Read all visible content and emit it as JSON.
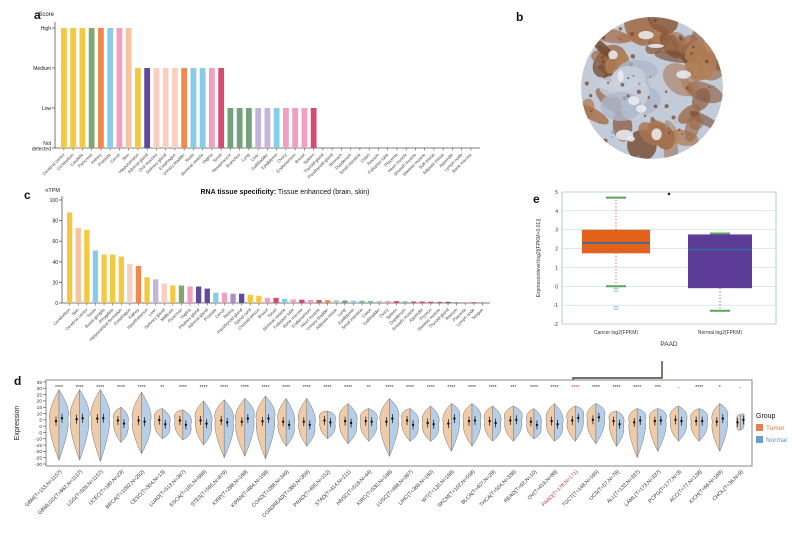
{
  "figure": {
    "panel_letters": {
      "a": "a",
      "b": "b",
      "c": "c",
      "d": "d",
      "e": "e"
    },
    "ihc_image": {
      "alt": "immunohistochemistry stained circular tissue core, brown DAB staining on blue-gray counterstain"
    }
  },
  "chart_data": [
    {
      "id": "protein_score",
      "panel": "a",
      "type": "bar",
      "ylabel": "Score",
      "yticks": [
        "High",
        "Medium",
        "Low",
        "Not detected"
      ],
      "bars": [
        {
          "tissue": "Cerebral cortex",
          "score": 3,
          "color": "#F5C842"
        },
        {
          "tissue": "Cerebellum",
          "score": 3,
          "color": "#F5C842"
        },
        {
          "tissue": "Caudate",
          "score": 3,
          "color": "#F5C842"
        },
        {
          "tissue": "Pancreas",
          "score": 3,
          "color": "#83A672"
        },
        {
          "tissue": "Kidney",
          "score": 3,
          "color": "#EF8A4C"
        },
        {
          "tissue": "Prostate",
          "score": 3,
          "color": "#89CBEA"
        },
        {
          "tissue": "Cervix",
          "score": 3,
          "color": "#F2A0C0"
        },
        {
          "tissue": "Skin",
          "score": 3,
          "color": "#F6C49E"
        },
        {
          "tissue": "Hippocampus",
          "score": 2,
          "color": "#F5C842"
        },
        {
          "tissue": "Adrenal gland",
          "score": 2,
          "color": "#5F4B9E"
        },
        {
          "tissue": "Oral mucosa",
          "score": 2,
          "color": "#F8CFC0"
        },
        {
          "tissue": "Salivary gland",
          "score": 2,
          "color": "#F8CFC0"
        },
        {
          "tissue": "Esophagus",
          "score": 2,
          "color": "#F8CFC0"
        },
        {
          "tissue": "Urinary bladder",
          "score": 2,
          "color": "#EF8A4C"
        },
        {
          "tissue": "Testis",
          "score": 2,
          "color": "#89CBEA"
        },
        {
          "tissue": "Seminal vesicle",
          "score": 2,
          "color": "#89CBEA"
        },
        {
          "tissue": "Vagina",
          "score": 2,
          "color": "#F2A0C0"
        },
        {
          "tissue": "Tonsil",
          "score": 2,
          "color": "#D64B6E"
        },
        {
          "tissue": "Nasopharynx",
          "score": 1,
          "color": "#74A27A"
        },
        {
          "tissue": "Bronchus",
          "score": 1,
          "color": "#74A27A"
        },
        {
          "tissue": "Lung",
          "score": 1,
          "color": "#74A27A"
        },
        {
          "tissue": "Liver",
          "score": 1,
          "color": "#C5B5DB"
        },
        {
          "tissue": "Gallbladder",
          "score": 1,
          "color": "#C5B5DB"
        },
        {
          "tissue": "Epididymis",
          "score": 1,
          "color": "#89CBEA"
        },
        {
          "tissue": "Ovary",
          "score": 1,
          "color": "#F2A0C0"
        },
        {
          "tissue": "Endometrium",
          "score": 1,
          "color": "#F2A0C0"
        },
        {
          "tissue": "Breast",
          "score": 1,
          "color": "#F2A0C0"
        },
        {
          "tissue": "Spleen",
          "score": 1,
          "color": "#D64B6E"
        },
        {
          "tissue": "Thyroid gland",
          "score": 0,
          "color": "#999999"
        },
        {
          "tissue": "Parathyroid gland",
          "score": 0,
          "color": "#999999"
        },
        {
          "tissue": "Stomach",
          "score": 0,
          "color": "#999999"
        },
        {
          "tissue": "Duodenum",
          "score": 0,
          "color": "#999999"
        },
        {
          "tissue": "Small intestine",
          "score": 0,
          "color": "#999999"
        },
        {
          "tissue": "Colon",
          "score": 0,
          "color": "#999999"
        },
        {
          "tissue": "Rectum",
          "score": 0,
          "color": "#999999"
        },
        {
          "tissue": "Fallopian tube",
          "score": 0,
          "color": "#999999"
        },
        {
          "tissue": "Placenta",
          "score": 0,
          "color": "#999999"
        },
        {
          "tissue": "Heart muscle",
          "score": 0,
          "color": "#999999"
        },
        {
          "tissue": "Smooth muscle",
          "score": 0,
          "color": "#999999"
        },
        {
          "tissue": "Skeletal muscle",
          "score": 0,
          "color": "#999999"
        },
        {
          "tissue": "Soft tissue",
          "score": 0,
          "color": "#999999"
        },
        {
          "tissue": "Adipose tissue",
          "score": 0,
          "color": "#999999"
        },
        {
          "tissue": "Appendix",
          "score": 0,
          "color": "#999999"
        },
        {
          "tissue": "Lymph node",
          "score": 0,
          "color": "#999999"
        },
        {
          "tissue": "Bone marrow",
          "score": 0,
          "color": "#999999"
        }
      ]
    },
    {
      "id": "rna_specificity",
      "panel": "c",
      "type": "bar",
      "title_bold": "RNA tissue specificity:",
      "title_rest": " Tissue enhanced (brain, skin)",
      "ylabel": "nTPM",
      "ylim": [
        0,
        100
      ],
      "yticks": [
        0,
        20,
        40,
        60,
        80,
        100
      ],
      "bars": [
        {
          "tissue": "Cerebellum",
          "value": 88,
          "color": "#F5C842"
        },
        {
          "tissue": "Skin",
          "value": 73,
          "color": "#F6C49E"
        },
        {
          "tissue": "Cerebral cortex",
          "value": 71,
          "color": "#F5C842"
        },
        {
          "tissue": "Testis",
          "value": 51,
          "color": "#89CBEA"
        },
        {
          "tissue": "Basal ganglia",
          "value": 47,
          "color": "#F5C842"
        },
        {
          "tissue": "Amygdala",
          "value": 47,
          "color": "#F5C842"
        },
        {
          "tissue": "Hippocampal formation",
          "value": 45,
          "color": "#F5C842"
        },
        {
          "tissue": "Esophagus",
          "value": 38,
          "color": "#F8CFC0"
        },
        {
          "tissue": "Kidney",
          "value": 36,
          "color": "#EF8A4C"
        },
        {
          "tissue": "Hypothalamus",
          "value": 25,
          "color": "#F5C842"
        },
        {
          "tissue": "Liver",
          "value": 23,
          "color": "#C5B5DB"
        },
        {
          "tissue": "Salivary gland",
          "value": 19,
          "color": "#F8CFC0"
        },
        {
          "tissue": "Midbrain",
          "value": 17,
          "color": "#F5C842"
        },
        {
          "tissue": "Pancreas",
          "value": 17,
          "color": "#83A672"
        },
        {
          "tissue": "Vagina",
          "value": 16,
          "color": "#F2A0C0"
        },
        {
          "tissue": "Pituitary gland",
          "value": 16,
          "color": "#5F4B9E"
        },
        {
          "tissue": "Adrenal gland",
          "value": 14,
          "color": "#5F4B9E"
        },
        {
          "tissue": "Prostate",
          "value": 10,
          "color": "#89CBEA"
        },
        {
          "tissue": "Cervix",
          "value": 10,
          "color": "#F2A0C0"
        },
        {
          "tissue": "Retina",
          "value": 9,
          "color": "#A98FC5"
        },
        {
          "tissue": "Parathyroid gland",
          "value": 9,
          "color": "#5F4B9E"
        },
        {
          "tissue": "Spinal cord",
          "value": 8,
          "color": "#F5C842"
        },
        {
          "tissue": "Choroid plexus",
          "value": 7,
          "color": "#F5C842"
        },
        {
          "tissue": "Breast",
          "value": 5,
          "color": "#F2A0C0"
        },
        {
          "tissue": "Tonsil",
          "value": 5,
          "color": "#D64B6E"
        },
        {
          "tissue": "Seminal vesicle",
          "value": 4,
          "color": "#89CBEA"
        },
        {
          "tissue": "Fallopian tube",
          "value": 3.5,
          "color": "#F2A0C0"
        },
        {
          "tissue": "Bone marrow",
          "value": 3.2,
          "color": "#D64B6E"
        },
        {
          "tissue": "Endometrium",
          "value": 3,
          "color": "#F2A0C0"
        },
        {
          "tissue": "Heart muscle",
          "value": 3,
          "color": "#C06A5E"
        },
        {
          "tissue": "Urinary bladder",
          "value": 2.8,
          "color": "#EF8A4C"
        },
        {
          "tissue": "Adipose tissue",
          "value": 2.6,
          "color": "#BFBFBF"
        },
        {
          "tissue": "Lung",
          "value": 2.4,
          "color": "#74A27A"
        },
        {
          "tissue": "Epididymis",
          "value": 2.3,
          "color": "#89CBEA"
        },
        {
          "tissue": "Small intestine",
          "value": 2.2,
          "color": "#86B8A2"
        },
        {
          "tissue": "Colon",
          "value": 2.1,
          "color": "#86B8A2"
        },
        {
          "tissue": "Gallbladder",
          "value": 2,
          "color": "#C5B5DB"
        },
        {
          "tissue": "Ovary",
          "value": 1.9,
          "color": "#F2A0C0"
        },
        {
          "tissue": "Spleen",
          "value": 1.8,
          "color": "#D64B6E"
        },
        {
          "tissue": "Duodenum",
          "value": 1.6,
          "color": "#86B8A2"
        },
        {
          "tissue": "Smooth muscle",
          "value": 1.5,
          "color": "#C06A5E"
        },
        {
          "tissue": "Appendix",
          "value": 1.4,
          "color": "#D64B6E"
        },
        {
          "tissue": "Thymus",
          "value": 1.3,
          "color": "#D64B6E"
        },
        {
          "tissue": "Skeletal muscle",
          "value": 1.2,
          "color": "#C06A5E"
        },
        {
          "tissue": "Thyroid gland",
          "value": 1.1,
          "color": "#5F4B9E"
        },
        {
          "tissue": "Rectum",
          "value": 1,
          "color": "#86B8A2"
        },
        {
          "tissue": "Placenta",
          "value": 0.9,
          "color": "#F2A0C0"
        },
        {
          "tissue": "Lymph node",
          "value": 0.8,
          "color": "#D64B6E"
        },
        {
          "tissue": "Tongue",
          "value": 0.6,
          "color": "#C06A5E"
        }
      ]
    },
    {
      "id": "paad_boxplot",
      "panel": "e",
      "type": "box",
      "ylabel": "Expressionlevel:log2[(FPKM+0.01)]",
      "xlabel": "PAAD",
      "ylim": [
        -2,
        5
      ],
      "yticks": [
        5,
        4,
        3,
        2,
        1,
        0,
        -1,
        -2
      ],
      "stray_point": 4.9,
      "colors": {
        "median_line": "#2E6DA4",
        "whisker_dots": "#CC3333",
        "caps": "#58A55C",
        "outlier": "#8BBBD9",
        "grid": "#CCD6EE",
        "frame": "#AAB8D8"
      },
      "groups": [
        {
          "label": "Cancer log2(FPKM)",
          "box_color": "#E2621B",
          "q1": 1.75,
          "median": 2.3,
          "q3": 3.0,
          "whisker_low": 0.0,
          "whisker_high": 4.7,
          "outliers": [
            -0.2,
            -1.15
          ]
        },
        {
          "label": "Normal log2(FPKM)",
          "box_color": "#5C3C97",
          "q1": -0.1,
          "median": 1.95,
          "q3": 2.75,
          "whisker_low": -1.3,
          "whisker_high": 2.8,
          "outliers": []
        }
      ]
    },
    {
      "id": "pancancer_violin",
      "panel": "d",
      "type": "violin",
      "ylabel": "Expression",
      "yticks": [
        35,
        30,
        25,
        20,
        15,
        10,
        5,
        0,
        -5,
        -10,
        -15,
        -20,
        -25,
        -30
      ],
      "highlight_color": "#C0392B",
      "legend": {
        "title": "Group",
        "items": [
          {
            "label": "Tumor",
            "color": "#DD8452",
            "text_color": "#C77B43"
          },
          {
            "label": "Normal",
            "color": "#6D9ED0",
            "text_color": "#5B8FC9"
          }
        ]
      },
      "violin_fill": {
        "tumor": "#EFCBA8",
        "normal": "#B7CEE8"
      },
      "groups": [
        {
          "label": "GBM(T=153,N=1157)",
          "sig": "****",
          "t": 4.0,
          "n": 6.3,
          "hi": 29,
          "lo": -27,
          "w": 1
        },
        {
          "label": "GBMLGG(T=662,N=1157)",
          "sig": "****",
          "t": 5.5,
          "n": 6.3,
          "hi": 29,
          "lo": -27,
          "w": 1
        },
        {
          "label": "LGG(T=509,N=1157)",
          "sig": "****",
          "t": 6.0,
          "n": 6.3,
          "hi": 29,
          "lo": -28,
          "w": 1
        },
        {
          "label": "UCEC(T=180,N=23)",
          "sig": "****",
          "t": 4.5,
          "n": 2.0,
          "hi": 15,
          "lo": -13,
          "w": 0.8
        },
        {
          "label": "BRCA(T=1092,N=292)",
          "sig": "****",
          "t": 4.5,
          "n": 3.5,
          "hi": 27,
          "lo": -22,
          "w": 1
        },
        {
          "label": "CESC(T=304,N=13)",
          "sig": "**",
          "t": 4.8,
          "n": 1.5,
          "hi": 14,
          "lo": -10,
          "w": 0.85
        },
        {
          "label": "LUAD(T=513,N=397)",
          "sig": "****",
          "t": 4.5,
          "n": 1.0,
          "hi": 13,
          "lo": -11,
          "w": 0.9
        },
        {
          "label": "ESCA(T=181,N=668)",
          "sig": "****",
          "t": 4.5,
          "n": 2.0,
          "hi": 20,
          "lo": -15,
          "w": 0.9
        },
        {
          "label": "STES(T=595,N=879)",
          "sig": "****",
          "t": 4.5,
          "n": 3.0,
          "hi": 21,
          "lo": -25,
          "w": 1
        },
        {
          "label": "KIRP(T=288,N=168)",
          "sig": "****",
          "t": 3.5,
          "n": 6.0,
          "hi": 22,
          "lo": -24,
          "w": 1
        },
        {
          "label": "KIPAN(T=884,N=168)",
          "sig": "****",
          "t": 3.8,
          "n": 6.0,
          "hi": 24,
          "lo": -26,
          "w": 1
        },
        {
          "label": "COAD(T=288,N=349)",
          "sig": "****",
          "t": 3.5,
          "n": 1.0,
          "hi": 22,
          "lo": -16,
          "w": 0.9
        },
        {
          "label": "COADREAD(T=380,N=359)",
          "sig": "****",
          "t": 3.5,
          "n": 1.0,
          "hi": 22,
          "lo": -16,
          "w": 0.9
        },
        {
          "label": "PRAD(T=495,N=152)",
          "sig": "****",
          "t": 4.5,
          "n": 3.0,
          "hi": 12,
          "lo": -10,
          "w": 0.85
        },
        {
          "label": "STAD(T=414,N=211)",
          "sig": "****",
          "t": 4.0,
          "n": 2.5,
          "hi": 18,
          "lo": -14,
          "w": 0.95
        },
        {
          "label": "HNSC(T=518,N=44)",
          "sig": "**",
          "t": 4.0,
          "n": 3.5,
          "hi": 14,
          "lo": -12,
          "w": 0.9
        },
        {
          "label": "KIRC(T=530,N=168)",
          "sig": "****",
          "t": 3.5,
          "n": 6.0,
          "hi": 22,
          "lo": -24,
          "w": 1
        },
        {
          "label": "LUSC(T=498,N=397)",
          "sig": "****",
          "t": 4.5,
          "n": 1.0,
          "hi": 14,
          "lo": -12,
          "w": 0.9
        },
        {
          "label": "LIHC(T=369,N=160)",
          "sig": "****",
          "t": 2.5,
          "n": 1.5,
          "hi": 16,
          "lo": -12,
          "w": 0.9
        },
        {
          "label": "WT(T=120,N=168)",
          "sig": "****",
          "t": 2.0,
          "n": 6.0,
          "hi": 18,
          "lo": -20,
          "w": 0.9
        },
        {
          "label": "SKCM(T=102,N=558)",
          "sig": "****",
          "t": 4.0,
          "n": 4.5,
          "hi": 18,
          "lo": -16,
          "w": 0.95
        },
        {
          "label": "BLCA(T=407,N=28)",
          "sig": "****",
          "t": 4.0,
          "n": 2.5,
          "hi": 16,
          "lo": -12,
          "w": 0.9
        },
        {
          "label": "THCA(T=504,N=338)",
          "sig": "***",
          "t": 4.5,
          "n": 5.0,
          "hi": 16,
          "lo": -12,
          "w": 0.95
        },
        {
          "label": "READ(T=92,N=10)",
          "sig": "****",
          "t": 3.5,
          "n": 1.0,
          "hi": 14,
          "lo": -10,
          "w": 0.8
        },
        {
          "label": "OV(T=419,N=88)",
          "sig": "****",
          "t": 4.0,
          "n": 1.5,
          "hi": 18,
          "lo": -12,
          "w": 0.9
        },
        {
          "label": "PAAD(T=178,N=171)",
          "sig": "****",
          "t": 4.5,
          "n": 6.5,
          "hi": 16,
          "lo": -12,
          "w": 0.9,
          "highlight": true
        },
        {
          "label": "TGCT(T=148,N=165)",
          "sig": "****",
          "t": 5.0,
          "n": 7.0,
          "hi": 18,
          "lo": -14,
          "w": 0.95
        },
        {
          "label": "UCS(T=57,N=78)",
          "sig": "****",
          "t": 4.0,
          "n": 1.5,
          "hi": 12,
          "lo": -16,
          "w": 0.8
        },
        {
          "label": "ALL(T=132,N=337)",
          "sig": "****",
          "t": 3.0,
          "n": 4.5,
          "hi": 14,
          "lo": -25,
          "w": 0.9
        },
        {
          "label": "LAML(T=173,N=337)",
          "sig": "***",
          "t": 4.0,
          "n": 4.5,
          "hi": 14,
          "lo": -20,
          "w": 0.9
        },
        {
          "label": "PCPG(T=177,N=3)",
          "sig": "-",
          "t": 5.0,
          "n": 4.0,
          "hi": 16,
          "lo": -12,
          "w": 0.9
        },
        {
          "label": "ACC(T=77,N=128)",
          "sig": "****",
          "t": 4.0,
          "n": 4.0,
          "hi": 14,
          "lo": -12,
          "w": 0.9
        },
        {
          "label": "KICH(T=66,N=168)",
          "sig": "*",
          "t": 3.5,
          "n": 6.0,
          "hi": 18,
          "lo": -20,
          "w": 0.85
        },
        {
          "label": "CHOL(T=36,N=9)",
          "sig": "-",
          "t": 3.0,
          "n": 5.0,
          "hi": 9,
          "lo": -3,
          "w": 0.4
        }
      ]
    }
  ]
}
